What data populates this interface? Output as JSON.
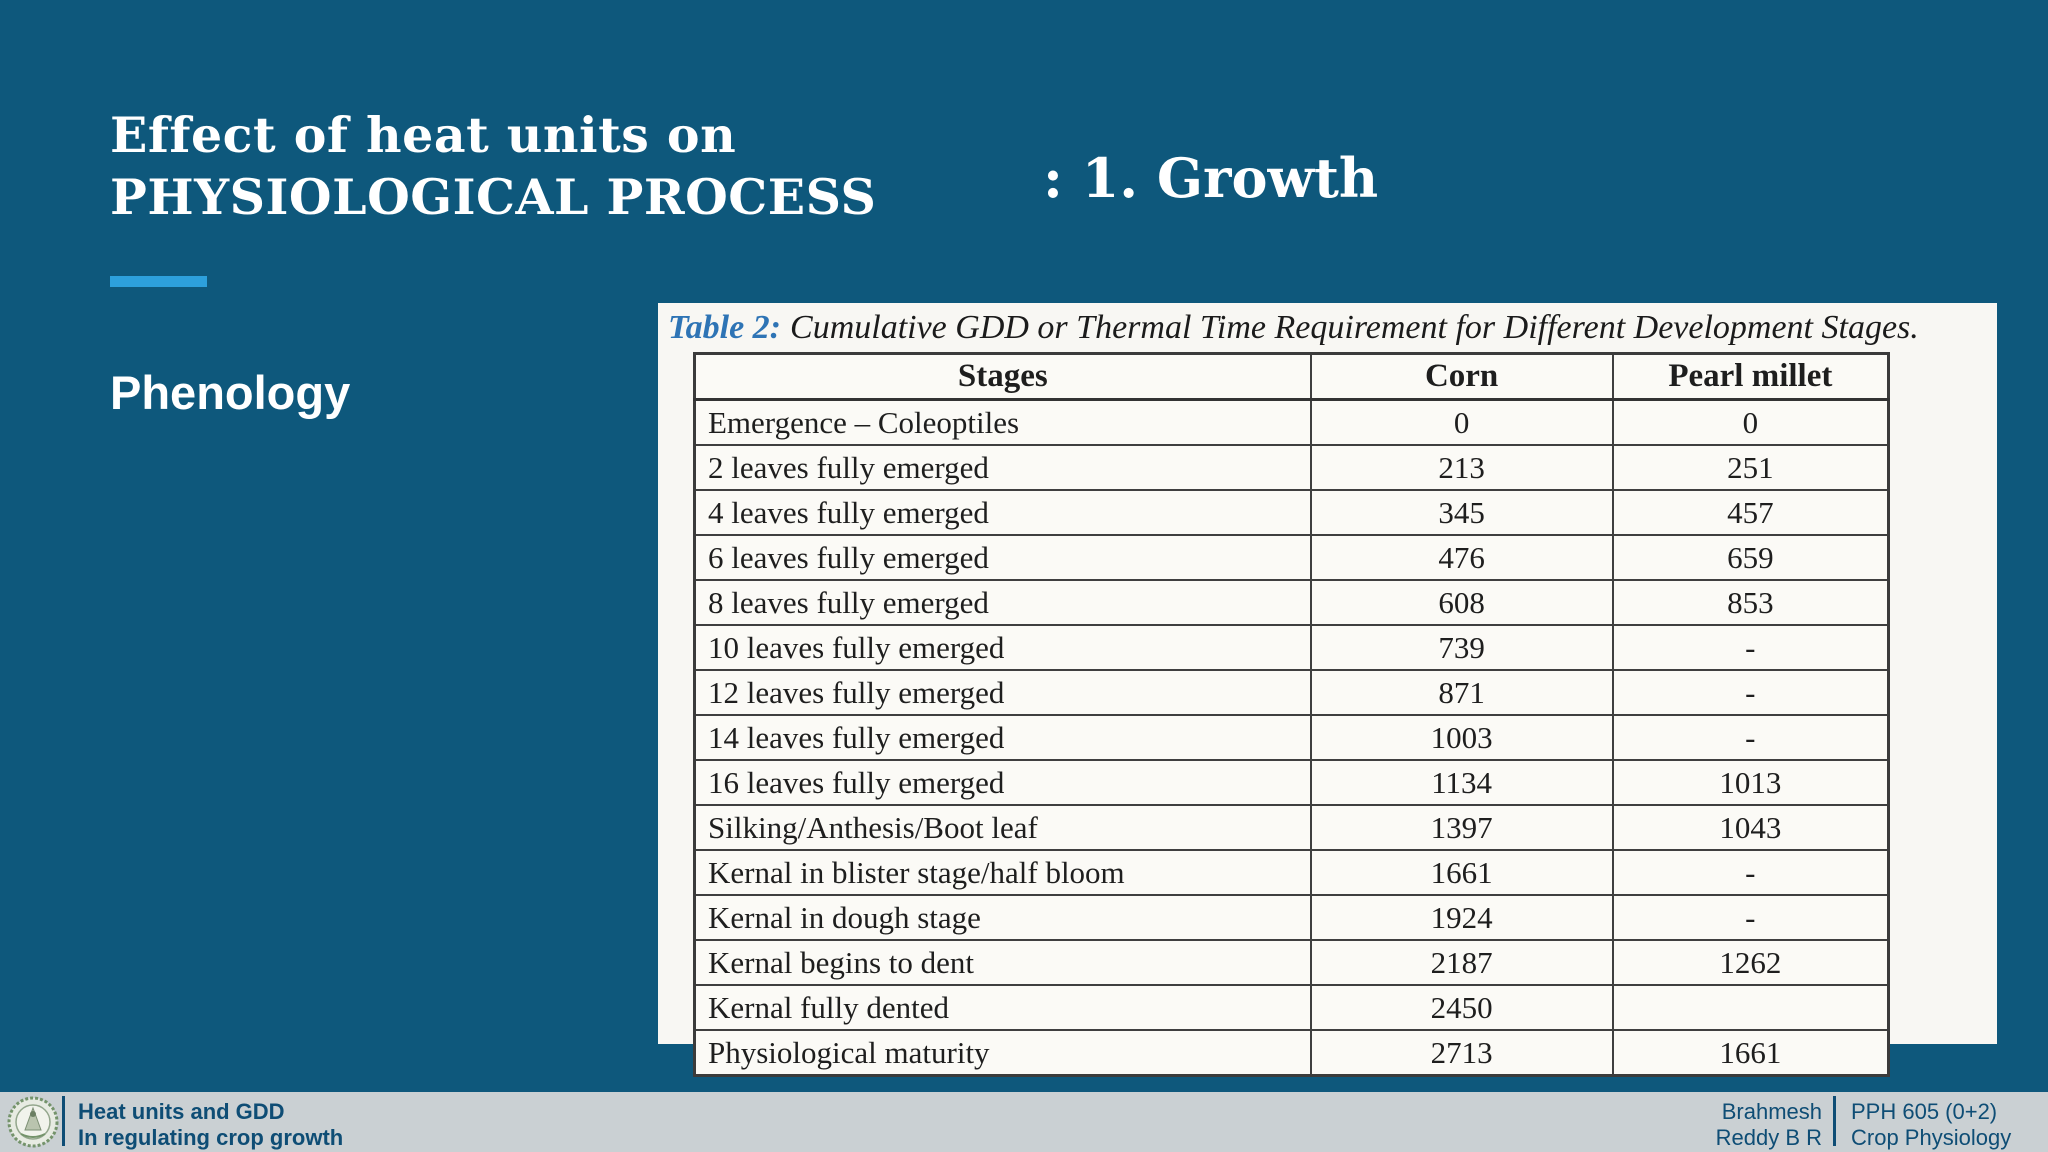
{
  "slide": {
    "title_line1": "Effect of heat units on",
    "title_line2": "PHYSIOLOGICAL PROCESS",
    "subtitle": ": 1. Growth",
    "section_label": "Phenology"
  },
  "table": {
    "caption_prefix": "Table 2:",
    "caption_rest": "Cumulative GDD or Thermal Time Requirement for Different Development Stages.",
    "columns": [
      "Stages",
      "Corn",
      "Pearl millet"
    ],
    "rows": [
      [
        "Emergence – Coleoptiles",
        "0",
        "0"
      ],
      [
        "2 leaves fully emerged",
        "213",
        "251"
      ],
      [
        "4 leaves fully emerged",
        "345",
        "457"
      ],
      [
        "6 leaves fully emerged",
        "476",
        "659"
      ],
      [
        "8 leaves fully emerged",
        "608",
        "853"
      ],
      [
        "10 leaves fully emerged",
        "739",
        "-"
      ],
      [
        "12 leaves fully emerged",
        "871",
        "-"
      ],
      [
        "14 leaves fully emerged",
        "1003",
        "-"
      ],
      [
        "16 leaves fully emerged",
        "1134",
        "1013"
      ],
      [
        "Silking/Anthesis/Boot leaf",
        "1397",
        "1043"
      ],
      [
        "Kernal in blister stage/half bloom",
        "1661",
        "-"
      ],
      [
        "Kernal in dough stage",
        "1924",
        "-"
      ],
      [
        "Kernal begins to dent",
        "2187",
        "1262"
      ],
      [
        "Kernal fully dented",
        "2450",
        ""
      ],
      [
        "Physiological maturity",
        "2713",
        "1661"
      ]
    ]
  },
  "footer": {
    "left_line1": "Heat units and GDD",
    "left_line2": "In regulating crop growth",
    "author_line1": "Brahmesh",
    "author_line2": "Reddy B R",
    "course_line1": "PPH 605 (0+2)",
    "course_line2": "Crop Physiology",
    "logo": "university-seal"
  },
  "colors": {
    "background": "#0e587c",
    "accent": "#2da0dc",
    "footer_bar": "#cad0d3",
    "footer_text": "#0e4d75",
    "caption_blue": "#2e74b5",
    "table_border": "#3f3f3f",
    "title_text": "#ffffff"
  }
}
